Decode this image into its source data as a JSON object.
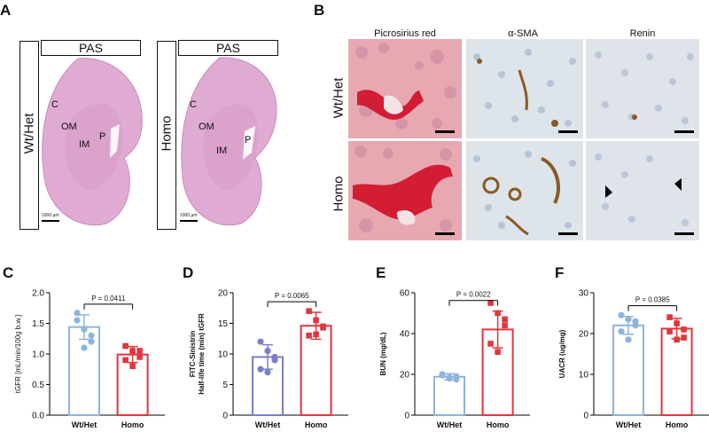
{
  "panel_labels": {
    "A": "A",
    "B": "B",
    "C": "C",
    "D": "D",
    "E": "E",
    "F": "F"
  },
  "panel_a": {
    "stain": "PAS",
    "groups": [
      "Wt/Het",
      "Homo"
    ],
    "regions": {
      "c": "C",
      "om": "OM",
      "im": "IM",
      "p": "P"
    },
    "scale_text": "1000 μm"
  },
  "panel_b": {
    "columns": [
      "Picrosirius red",
      "α-SMA",
      "Renin"
    ],
    "rows": [
      "Wt/Het",
      "Homo"
    ]
  },
  "colors": {
    "wt": "#8fb4dc",
    "homo": "#e2353c",
    "purple": "#7b7fc8",
    "pas": "#dba3cc"
  },
  "chart_data": [
    {
      "type": "bar",
      "panel": "C",
      "categories": [
        "Wt/Het",
        "Homo"
      ],
      "values": [
        1.44,
        0.99
      ],
      "errors": [
        0.2,
        0.13
      ],
      "points": [
        [
          1.67,
          1.4,
          1.2,
          1.55,
          1.1,
          1.3
        ],
        [
          1.13,
          1.05,
          0.95,
          0.9,
          0.8,
          1.05
        ]
      ],
      "ylabel": "tGFR [mL/min/100g b.w.]",
      "ylim": [
        0,
        2.0
      ],
      "yticks": [
        "0.0",
        "0.5",
        "1.0",
        "1.5",
        "2.0"
      ],
      "pvalue": "P = 0.0411"
    },
    {
      "type": "bar",
      "panel": "D",
      "categories": [
        "Wt/Het",
        "Homo"
      ],
      "values": [
        9.5,
        14.6
      ],
      "errors": [
        2.0,
        2.2
      ],
      "points": [
        [
          12.0,
          10.5,
          9.0,
          7.5,
          7.0,
          9.5
        ],
        [
          17.0,
          15.5,
          14.5,
          13.0,
          13.2,
          14.3
        ]
      ],
      "ylabel": "FITC-Sinistrin Half-life time (min) tGFR",
      "ylim": [
        0,
        20
      ],
      "yticks": [
        "0",
        "5",
        "10",
        "15",
        "20"
      ],
      "pvalue": "P = 0.0065"
    },
    {
      "type": "bar",
      "panel": "E",
      "categories": [
        "Wt/Het",
        "Homo"
      ],
      "values": [
        18.8,
        42.0
      ],
      "errors": [
        1.5,
        9.0
      ],
      "points": [
        [
          20.0,
          18.5,
          17.5,
          19.5,
          18.0,
          19.0
        ],
        [
          55.0,
          50.0,
          47.0,
          35.0,
          31.0,
          44.0
        ]
      ],
      "ylabel": "BUN (mg/dL)",
      "ylim": [
        0,
        60
      ],
      "yticks": [
        "0",
        "20",
        "40",
        "60"
      ],
      "pvalue": "P = 0.0022"
    },
    {
      "type": "bar",
      "panel": "F",
      "categories": [
        "Wt/Het",
        "Homo"
      ],
      "values": [
        22.0,
        21.2
      ],
      "errors": [
        2.2,
        2.5
      ],
      "points": [
        [
          24.5,
          23.5,
          22.0,
          20.5,
          18.5,
          23.0
        ],
        [
          24.0,
          22.5,
          21.0,
          20.5,
          18.5,
          19.0
        ]
      ],
      "ylabel": "UACR (ug/mg)",
      "ylim": [
        0,
        30
      ],
      "yticks": [
        "0",
        "10",
        "20",
        "30"
      ],
      "pvalue": "P = 0.0385"
    }
  ]
}
